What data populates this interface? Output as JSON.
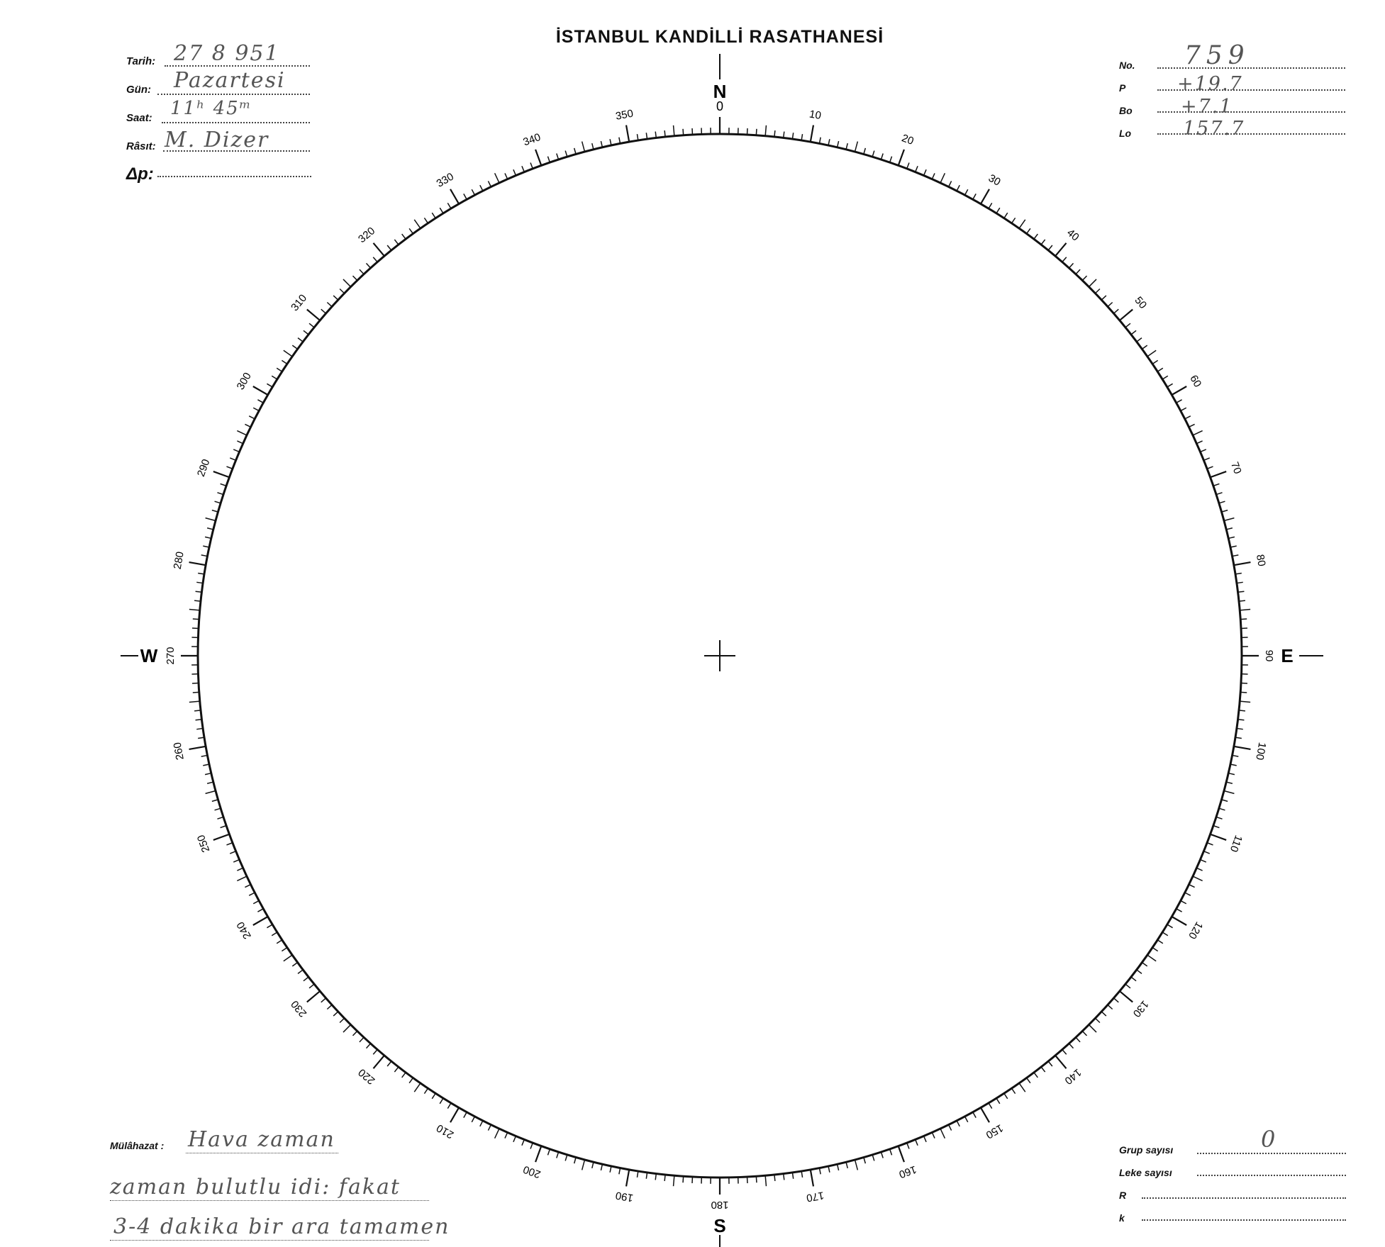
{
  "header": {
    "title": "İSTANBUL KANDİLLİ RASATHANESİ"
  },
  "left_fields": [
    {
      "label": "Tarih:",
      "value": "27 8 951"
    },
    {
      "label": "Gün:",
      "value": "Pazartesi"
    },
    {
      "label": "Saat:",
      "value": "11ʰ 45ᵐ"
    },
    {
      "label": "Râsıt:",
      "value": "M. Dizer"
    },
    {
      "label": "Δp:",
      "value": ""
    }
  ],
  "right_fields": [
    {
      "label": "No.",
      "value": "759"
    },
    {
      "label": "P",
      "value": "+19.7"
    },
    {
      "label": "Bo",
      "value": "+7.1"
    },
    {
      "label": "Lo",
      "value": "157.7"
    }
  ],
  "remarks": {
    "label": "Mülâhazat :",
    "lines": [
      "Hava zaman",
      "zaman bulutlu idi: fakat",
      "3-4 dakika bir ara tamamen"
    ]
  },
  "bottom_fields": [
    {
      "label": "Grup sayısı",
      "value": "0"
    },
    {
      "label": "Leke sayısı",
      "value": ""
    },
    {
      "label": "R",
      "value": ""
    },
    {
      "label": "k",
      "value": ""
    }
  ],
  "compass": {
    "north": "N",
    "south": "S",
    "east": "E",
    "west": "W",
    "scale_labels": [
      "0",
      "10",
      "20",
      "30",
      "40",
      "50",
      "60",
      "70",
      "80",
      "90",
      "100",
      "110",
      "120",
      "130",
      "140",
      "150",
      "160",
      "170",
      "180",
      "190",
      "200",
      "210",
      "220",
      "230",
      "240",
      "250",
      "260",
      "270",
      "280",
      "290",
      "300",
      "310",
      "320",
      "330",
      "340",
      "350"
    ]
  }
}
